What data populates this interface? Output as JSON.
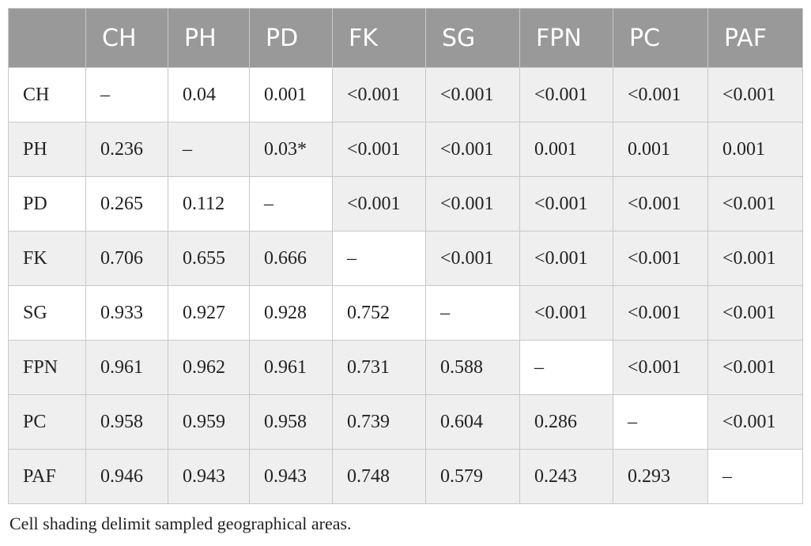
{
  "table": {
    "columns": [
      "",
      "CH",
      "PH",
      "PD",
      "FK",
      "SG",
      "FPN",
      "PC",
      "PAF"
    ],
    "rows": [
      [
        "CH",
        "–",
        "0.04",
        "0.001",
        "<0.001",
        "<0.001",
        "<0.001",
        "<0.001",
        "<0.001"
      ],
      [
        "PH",
        "0.236",
        "–",
        "0.03*",
        "<0.001",
        "<0.001",
        "0.001",
        "0.001",
        "0.001"
      ],
      [
        "PD",
        "0.265",
        "0.112",
        "–",
        "<0.001",
        "<0.001",
        "<0.001",
        "<0.001",
        "<0.001"
      ],
      [
        "FK",
        "0.706",
        "0.655",
        "0.666",
        "–",
        "<0.001",
        "<0.001",
        "<0.001",
        "<0.001"
      ],
      [
        "SG",
        "0.933",
        "0.927",
        "0.928",
        "0.752",
        "–",
        "<0.001",
        "<0.001",
        "<0.001"
      ],
      [
        "FPN",
        "0.961",
        "0.962",
        "0.961",
        "0.731",
        "0.588",
        "–",
        "<0.001",
        "<0.001"
      ],
      [
        "PC",
        "0.958",
        "0.959",
        "0.958",
        "0.739",
        "0.604",
        "0.286",
        "–",
        "<0.001"
      ],
      [
        "PAF",
        "0.946",
        "0.943",
        "0.943",
        "0.748",
        "0.579",
        "0.243",
        "0.293",
        "–"
      ]
    ]
  },
  "footnote": "Cell shading delimit sampled geographical areas."
}
